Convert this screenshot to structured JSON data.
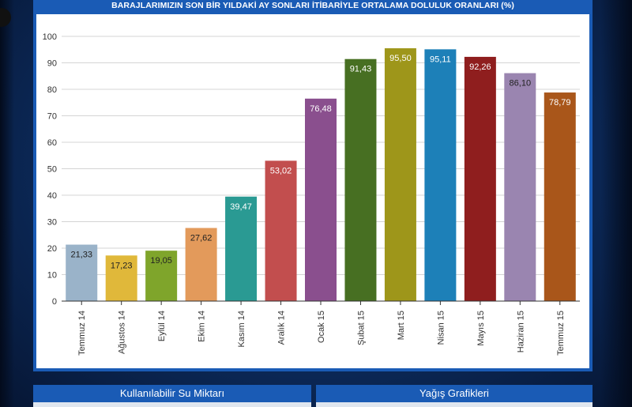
{
  "header": {
    "title": "BARAJLARIMIZIN SON BİR YILDAKİ AY SONLARI İTİBARİYLE ORTALAMA DOLULUK ORANLARI (%)"
  },
  "chart_data": {
    "type": "bar",
    "title": "BARAJLARIMIZIN SON BİR YILDAKİ AY SONLARI İTİBARİYLE ORTALAMA DOLULUK ORANLARI (%)",
    "xlabel": "",
    "ylabel": "",
    "ylim": [
      0,
      100
    ],
    "yticks": [
      0,
      10,
      20,
      30,
      40,
      50,
      60,
      70,
      80,
      90,
      100
    ],
    "grid": true,
    "categories": [
      "Temmuz 14",
      "Ağustos 14",
      "Eylül 14",
      "Ekim 14",
      "Kasım 14",
      "Aralık 14",
      "Ocak 15",
      "Şubat 15",
      "Mart 15",
      "Nisan 15",
      "Mayıs 15",
      "Haziran 15",
      "Temmuz 15"
    ],
    "values": [
      21.33,
      17.23,
      19.05,
      27.62,
      39.47,
      53.02,
      76.48,
      91.43,
      95.5,
      95.11,
      92.26,
      86.1,
      78.79
    ],
    "value_labels": [
      "21,33",
      "17,23",
      "19,05",
      "27,62",
      "39,47",
      "53,02",
      "76,48",
      "91,43",
      "95,50",
      "95,11",
      "92,26",
      "86,10",
      "78,79"
    ],
    "colors": [
      "#9ab3c9",
      "#e0b83a",
      "#7fa52b",
      "#e39a5b",
      "#2a9a93",
      "#c24e4e",
      "#8a4f8e",
      "#476f22",
      "#9e961a",
      "#1d80b8",
      "#8f1e1e",
      "#9a85b0",
      "#a9561a"
    ],
    "label_colors": [
      "#222222",
      "#222222",
      "#222222",
      "#222222",
      "#ffffff",
      "#ffffff",
      "#ffffff",
      "#ffffff",
      "#ffffff",
      "#ffffff",
      "#ffffff",
      "#222222",
      "#ffffff"
    ]
  },
  "tabs": {
    "left_label": "Kullanılabilir Su Miktarı",
    "right_label": "Yağış Grafikleri"
  }
}
